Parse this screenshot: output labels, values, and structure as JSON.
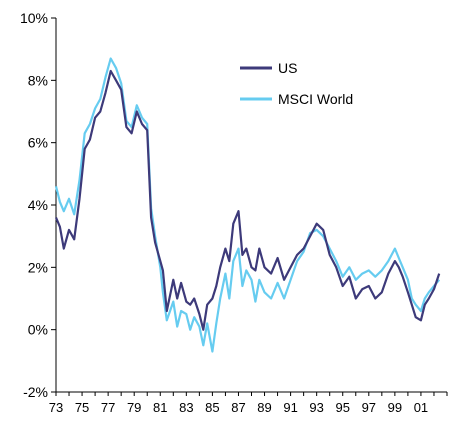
{
  "chart_data": {
    "type": "line",
    "title": "",
    "xlabel": "",
    "ylabel": "",
    "xlim": [
      1973,
      2003
    ],
    "ylim": [
      -2,
      10
    ],
    "y_ticks": [
      -2,
      0,
      2,
      4,
      6,
      8,
      10
    ],
    "y_tick_labels": [
      "-2%",
      "0%",
      "2%",
      "4%",
      "6%",
      "8%",
      "10%"
    ],
    "x_ticks": [
      1973,
      1975,
      1977,
      1979,
      1981,
      1983,
      1985,
      1987,
      1989,
      1991,
      1993,
      1995,
      1997,
      1999,
      2001
    ],
    "x_tick_labels": [
      "73",
      "75",
      "77",
      "79",
      "81",
      "83",
      "85",
      "87",
      "89",
      "91",
      "93",
      "95",
      "97",
      "99",
      "01"
    ],
    "grid": false,
    "legend_position": "top-right",
    "series": [
      {
        "name": "US",
        "color": "#3d3a7a",
        "x": [
          1973.0,
          1973.3,
          1973.6,
          1974.0,
          1974.4,
          1974.8,
          1975.2,
          1975.6,
          1976.0,
          1976.4,
          1976.8,
          1977.2,
          1977.6,
          1978.0,
          1978.4,
          1978.8,
          1979.2,
          1979.6,
          1980.0,
          1980.3,
          1980.6,
          1981.0,
          1981.2,
          1981.5,
          1982.0,
          1982.3,
          1982.6,
          1983.0,
          1983.3,
          1983.6,
          1984.0,
          1984.3,
          1984.6,
          1985.0,
          1985.3,
          1985.6,
          1986.0,
          1986.3,
          1986.6,
          1987.0,
          1987.3,
          1987.6,
          1988.0,
          1988.3,
          1988.6,
          1989.0,
          1989.5,
          1990.0,
          1990.5,
          1991.0,
          1991.5,
          1992.0,
          1992.5,
          1993.0,
          1993.5,
          1994.0,
          1994.5,
          1995.0,
          1995.5,
          1996.0,
          1996.5,
          1997.0,
          1997.5,
          1998.0,
          1998.5,
          1999.0,
          1999.3,
          1999.6,
          2000.0,
          2000.3,
          2000.6,
          2001.0,
          2001.3,
          2001.6,
          2002.0,
          2002.4
        ],
        "values": [
          3.6,
          3.3,
          2.6,
          3.2,
          2.9,
          4.2,
          5.8,
          6.1,
          6.8,
          7.0,
          7.6,
          8.3,
          8.0,
          7.7,
          6.5,
          6.3,
          7.0,
          6.6,
          6.4,
          3.6,
          2.8,
          2.2,
          1.9,
          0.6,
          1.6,
          1.0,
          1.5,
          0.9,
          0.8,
          1.0,
          0.5,
          0.0,
          0.8,
          1.0,
          1.4,
          2.0,
          2.6,
          2.2,
          3.4,
          3.8,
          2.4,
          2.6,
          2.0,
          1.9,
          2.6,
          2.0,
          1.8,
          2.3,
          1.6,
          2.0,
          2.4,
          2.6,
          3.0,
          3.4,
          3.2,
          2.4,
          2.0,
          1.4,
          1.7,
          1.0,
          1.3,
          1.4,
          1.0,
          1.2,
          1.8,
          2.2,
          2.0,
          1.7,
          1.2,
          0.8,
          0.4,
          0.3,
          0.8,
          1.0,
          1.3,
          1.8
        ]
      },
      {
        "name": "MSCI World",
        "color": "#66ccf0",
        "x": [
          1973.0,
          1973.3,
          1973.6,
          1974.0,
          1974.4,
          1974.8,
          1975.2,
          1975.6,
          1976.0,
          1976.4,
          1976.8,
          1977.2,
          1977.6,
          1978.0,
          1978.4,
          1978.8,
          1979.2,
          1979.6,
          1980.0,
          1980.3,
          1980.6,
          1981.0,
          1981.2,
          1981.5,
          1982.0,
          1982.3,
          1982.6,
          1983.0,
          1983.3,
          1983.6,
          1984.0,
          1984.3,
          1984.6,
          1985.0,
          1985.3,
          1985.6,
          1986.0,
          1986.3,
          1986.6,
          1987.0,
          1987.3,
          1987.6,
          1988.0,
          1988.3,
          1988.6,
          1989.0,
          1989.5,
          1990.0,
          1990.5,
          1991.0,
          1991.5,
          1992.0,
          1992.5,
          1993.0,
          1993.5,
          1994.0,
          1994.5,
          1995.0,
          1995.5,
          1996.0,
          1996.5,
          1997.0,
          1997.5,
          1998.0,
          1998.5,
          1999.0,
          1999.3,
          1999.6,
          2000.0,
          2000.3,
          2000.6,
          2001.0,
          2001.3,
          2001.6,
          2002.0,
          2002.4
        ],
        "values": [
          4.6,
          4.1,
          3.8,
          4.2,
          3.7,
          4.8,
          6.3,
          6.6,
          7.1,
          7.4,
          8.1,
          8.7,
          8.4,
          7.9,
          6.7,
          6.5,
          7.2,
          6.8,
          6.6,
          3.9,
          3.0,
          2.0,
          1.2,
          0.3,
          0.9,
          0.1,
          0.6,
          0.5,
          0.0,
          0.4,
          0.1,
          -0.5,
          0.2,
          -0.7,
          0.2,
          1.0,
          1.8,
          1.0,
          2.2,
          2.6,
          1.4,
          1.9,
          1.6,
          0.9,
          1.6,
          1.2,
          1.0,
          1.5,
          1.0,
          1.6,
          2.2,
          2.5,
          3.1,
          3.2,
          3.0,
          2.6,
          2.2,
          1.7,
          2.0,
          1.6,
          1.8,
          1.9,
          1.7,
          1.9,
          2.2,
          2.6,
          2.3,
          2.0,
          1.6,
          1.0,
          0.8,
          0.6,
          1.0,
          1.2,
          1.4,
          1.6
        ]
      }
    ]
  }
}
